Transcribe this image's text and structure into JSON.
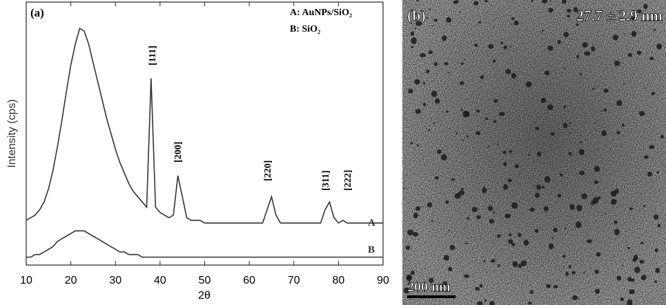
{
  "chart_data": {
    "type": "line",
    "panel_label": "(a)",
    "xlabel": "2θ",
    "ylabel": "Intensity (cps)",
    "x": [
      10,
      11,
      12,
      13,
      14,
      15,
      16,
      17,
      18,
      19,
      20,
      21,
      22,
      23,
      24,
      25,
      26,
      27,
      28,
      29,
      30,
      31,
      32,
      33,
      34,
      35,
      36,
      37,
      38,
      39,
      40,
      41,
      42,
      43,
      44,
      45,
      46,
      47,
      48,
      49,
      50,
      51,
      52,
      53,
      54,
      55,
      56,
      57,
      58,
      59,
      60,
      61,
      62,
      63,
      64,
      65,
      66,
      67,
      68,
      69,
      70,
      71,
      72,
      73,
      74,
      75,
      76,
      77,
      78,
      79,
      80,
      81,
      82,
      83,
      84,
      85,
      86,
      87,
      88,
      89,
      90
    ],
    "series": [
      {
        "name": "A: AuNPs/SiO₂",
        "color": "#333333",
        "values": [
          17,
          18,
          19,
          21,
          24,
          29,
          36,
          45,
          55,
          66,
          76,
          84,
          90,
          89,
          84,
          77,
          70,
          63,
          56,
          50,
          44,
          39,
          35,
          31,
          28,
          26,
          24,
          22,
          71,
          22,
          20,
          19,
          18,
          19,
          34,
          26,
          18,
          17,
          17,
          17,
          16,
          16,
          16,
          16,
          16,
          16,
          16,
          16,
          16,
          16,
          16,
          16,
          16,
          16,
          21,
          26,
          19,
          16,
          16,
          16,
          16,
          16,
          16,
          16,
          16,
          16,
          16,
          21,
          24,
          18,
          16,
          17,
          16,
          16,
          16,
          16,
          16,
          16,
          16,
          16,
          16
        ]
      },
      {
        "name": "B: SiO₂",
        "color": "#333333",
        "values": [
          3,
          3,
          4,
          4,
          5,
          6,
          7,
          9,
          10,
          11,
          12,
          13,
          13,
          13,
          12,
          11,
          10,
          9,
          8,
          7,
          6,
          5,
          5,
          4,
          4,
          4,
          3,
          3,
          3,
          3,
          3,
          3,
          3,
          3,
          3,
          3,
          3,
          3,
          3,
          3,
          3,
          3,
          3,
          3,
          3,
          3,
          3,
          3,
          3,
          3,
          3,
          3,
          3,
          3,
          3,
          3,
          3,
          3,
          3,
          3,
          3,
          3,
          3,
          3,
          3,
          3,
          3,
          3,
          3,
          3,
          3,
          3,
          3,
          3,
          3,
          3,
          3,
          3,
          3,
          3,
          3
        ]
      }
    ],
    "curve_labels": [
      "A",
      "B"
    ],
    "annotations": [
      "[111]",
      "[200]",
      "[220]",
      "[311]",
      "[222]"
    ],
    "xlim": [
      10,
      90
    ],
    "xticks": [
      10,
      20,
      30,
      40,
      50,
      60,
      70,
      80,
      90
    ],
    "ylim": [
      0,
      100
    ]
  },
  "panel_b": {
    "label": "(b)",
    "size": "27.7 ± 2.9 nm",
    "scale_bar": "200 nm"
  }
}
